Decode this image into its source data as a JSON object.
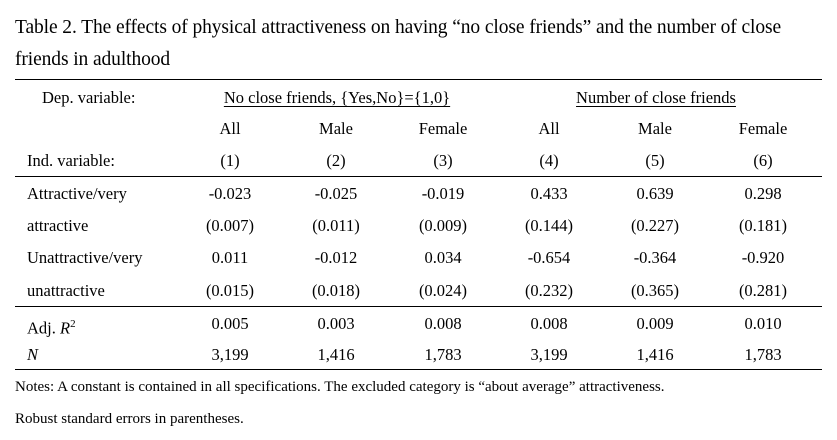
{
  "caption": "Table 2. The effects of physical attractiveness on having “no close friends” and the number of close friends in adulthood",
  "header": {
    "dep_label": "Dep. variable:",
    "group1": "No close friends, {Yes,No}={1,0}",
    "group2": "Number of close friends",
    "columns": [
      "All",
      "Male",
      "Female",
      "All",
      "Male",
      "Female"
    ],
    "ind_label": "Ind. variable:",
    "numbers": [
      "(1)",
      "(2)",
      "(3)",
      "(4)",
      "(5)",
      "(6)"
    ]
  },
  "rows": [
    {
      "label": "Attractive/very",
      "values": [
        "-0.023",
        "-0.025",
        "-0.019",
        "0.433",
        "0.639",
        "0.298"
      ]
    },
    {
      "label": "attractive",
      "values": [
        "(0.007)",
        "(0.011)",
        "(0.009)",
        "(0.144)",
        "(0.227)",
        "(0.181)"
      ]
    },
    {
      "label": "Unattractive/very",
      "values": [
        "0.011",
        "-0.012",
        "0.034",
        "-0.654",
        "-0.364",
        "-0.920"
      ]
    },
    {
      "label": "unattractive",
      "values": [
        "(0.015)",
        "(0.018)",
        "(0.024)",
        "(0.232)",
        "(0.365)",
        "(0.281)"
      ]
    }
  ],
  "stats": [
    {
      "label": "Adj. R²",
      "label_text": "Adj.",
      "label_var": "R",
      "label_sup": "2",
      "values": [
        "0.005",
        "0.003",
        "0.008",
        "0.008",
        "0.009",
        "0.010"
      ]
    },
    {
      "label": "N",
      "values": [
        "3,199",
        "1,416",
        "1,783",
        "3,199",
        "1,416",
        "1,783"
      ]
    }
  ],
  "notes": [
    "Notes: A constant is contained in all specifications. The excluded category is “about average” attractiveness.",
    "Robust standard errors in parentheses."
  ]
}
